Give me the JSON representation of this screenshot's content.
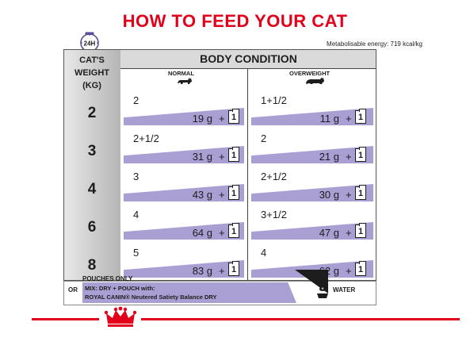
{
  "title": "HOW TO FEED YOUR CAT",
  "clock_label": "24H",
  "metabolisable_energy": "Metabolisable energy: 719 kcal/kg",
  "table": {
    "weight_header_line1": "CAT'S",
    "weight_header_line2": "WEIGHT",
    "weight_header_line3": "(KG)",
    "body_condition": "BODY CONDITION",
    "normal_label": "NORMAL",
    "overweight_label": "OVERWEIGHT",
    "pouch_prefix": "+",
    "pouch_count": "1",
    "rows": [
      {
        "weight": "2",
        "normal_pouches": "2",
        "normal_grams": "19 g",
        "over_pouches": "1+1/2",
        "over_grams": "11 g"
      },
      {
        "weight": "3",
        "normal_pouches": "2+1/2",
        "normal_grams": "31 g",
        "over_pouches": "2",
        "over_grams": "21 g"
      },
      {
        "weight": "4",
        "normal_pouches": "3",
        "normal_grams": "43 g",
        "over_pouches": "2+1/2",
        "over_grams": "30 g"
      },
      {
        "weight": "6",
        "normal_pouches": "4",
        "normal_grams": "64 g",
        "over_pouches": "3+1/2",
        "over_grams": "47 g"
      },
      {
        "weight": "8",
        "normal_pouches": "5",
        "normal_grams": "83 g",
        "over_pouches": "4",
        "over_grams": "62 g"
      }
    ]
  },
  "footer": {
    "pouches_only": "POUCHES ONLY",
    "or": "OR",
    "mix_line1": "MIX: DRY + POUCH with:",
    "mix_line2": "ROYAL CANIN® Neutered Satiety Balance DRY",
    "water": "WATER"
  },
  "colors": {
    "brand_red": "#e2001a",
    "band_purple": "#a99fd2",
    "weight_gray": "#b5b5b5"
  }
}
